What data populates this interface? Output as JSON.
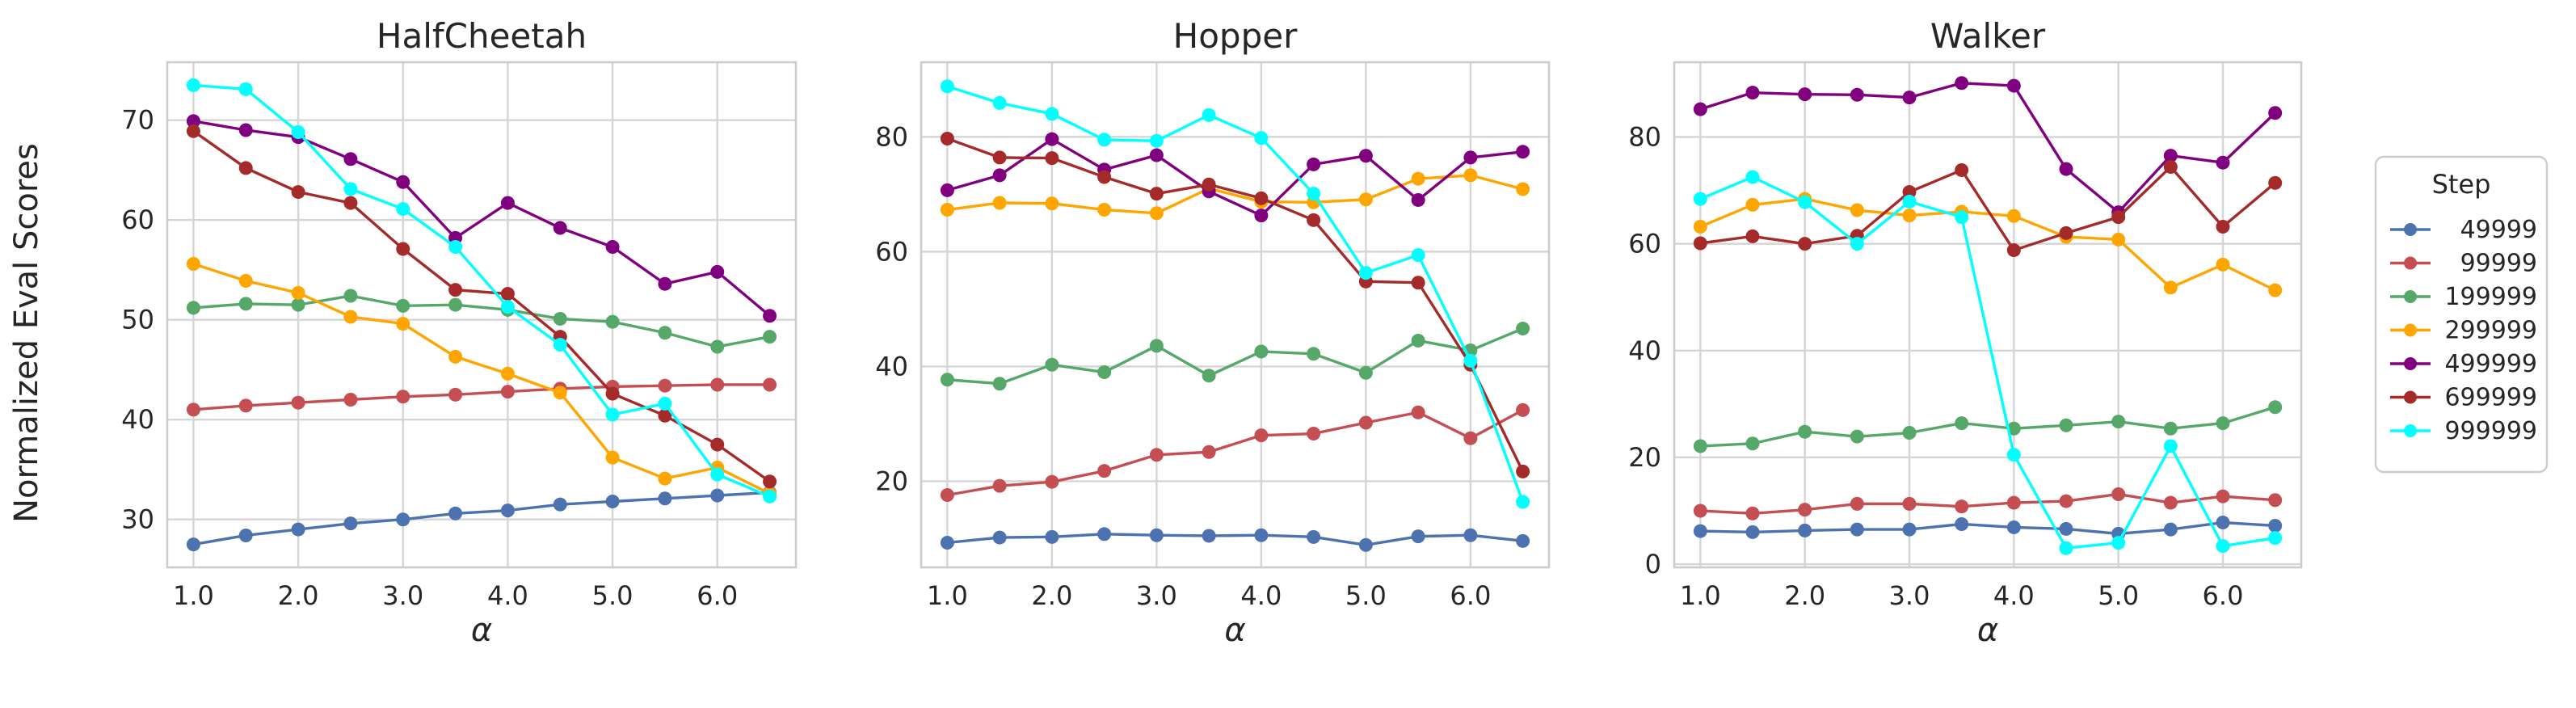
{
  "figure": {
    "ylabel": "Normalized Eval Scores"
  },
  "chart_data": [
    {
      "type": "line",
      "title": "HalfCheetah",
      "xlabel": "α",
      "ylabel": "Normalized Eval Scores",
      "x": [
        1.0,
        1.5,
        2.0,
        2.5,
        3.0,
        3.5,
        4.0,
        4.5,
        5.0,
        5.5,
        6.0,
        6.5
      ],
      "xticks": [
        1.0,
        2.0,
        3.0,
        4.0,
        5.0,
        6.0
      ],
      "xtick_labels": [
        "1.0",
        "2.0",
        "3.0",
        "4.0",
        "5.0",
        "6.0"
      ],
      "xlim": [
        0.75,
        6.75
      ],
      "ylim": [
        25.2,
        75.8
      ],
      "yticks": [
        30,
        40,
        50,
        60,
        70
      ],
      "grid": true,
      "series": [
        {
          "name": "49999",
          "values": [
            27.5,
            28.4,
            29.0,
            29.6,
            30.0,
            30.6,
            30.9,
            31.5,
            31.8,
            32.1,
            32.4,
            32.7
          ]
        },
        {
          "name": "99999",
          "values": [
            41.0,
            41.4,
            41.7,
            42.0,
            42.3,
            42.5,
            42.8,
            43.1,
            43.3,
            43.4,
            43.5,
            43.5
          ]
        },
        {
          "name": "199999",
          "values": [
            51.2,
            51.6,
            51.5,
            52.4,
            51.4,
            51.5,
            51.0,
            50.1,
            49.8,
            48.7,
            47.3,
            48.3
          ]
        },
        {
          "name": "299999",
          "values": [
            55.6,
            53.9,
            52.7,
            50.3,
            49.6,
            46.3,
            44.6,
            42.7,
            36.2,
            34.1,
            35.2,
            32.6
          ]
        },
        {
          "name": "499999",
          "values": [
            69.9,
            69.0,
            68.3,
            66.1,
            63.8,
            58.2,
            61.7,
            59.2,
            57.3,
            53.6,
            54.8,
            50.4
          ]
        },
        {
          "name": "699999",
          "values": [
            68.9,
            65.2,
            62.8,
            61.7,
            57.1,
            53.0,
            52.6,
            48.3,
            42.6,
            40.4,
            37.5,
            33.8
          ]
        },
        {
          "name": "999999",
          "values": [
            73.5,
            73.1,
            68.8,
            63.1,
            61.1,
            57.3,
            51.3,
            47.5,
            40.5,
            41.6,
            34.5,
            32.3
          ]
        }
      ]
    },
    {
      "type": "line",
      "title": "Hopper",
      "xlabel": "α",
      "ylabel": "",
      "x": [
        1.0,
        1.5,
        2.0,
        2.5,
        3.0,
        3.5,
        4.0,
        4.5,
        5.0,
        5.5,
        6.0,
        6.5
      ],
      "xticks": [
        1.0,
        2.0,
        3.0,
        4.0,
        5.0,
        6.0
      ],
      "xtick_labels": [
        "1.0",
        "2.0",
        "3.0",
        "4.0",
        "5.0",
        "6.0"
      ],
      "xlim": [
        0.75,
        6.75
      ],
      "ylim": [
        5.0,
        93.0
      ],
      "yticks": [
        20,
        40,
        60,
        80
      ],
      "grid": true,
      "series": [
        {
          "name": "49999",
          "values": [
            9.3,
            10.2,
            10.3,
            10.8,
            10.6,
            10.5,
            10.6,
            10.3,
            8.9,
            10.4,
            10.6,
            9.6
          ]
        },
        {
          "name": "99999",
          "values": [
            17.6,
            19.2,
            19.9,
            21.8,
            24.6,
            25.1,
            28.0,
            28.3,
            30.2,
            32.0,
            27.5,
            32.4
          ]
        },
        {
          "name": "199999",
          "values": [
            37.7,
            37.0,
            40.3,
            39.0,
            43.6,
            38.4,
            42.6,
            42.2,
            38.9,
            44.5,
            42.8,
            46.6
          ]
        },
        {
          "name": "299999",
          "values": [
            67.3,
            68.5,
            68.4,
            67.3,
            66.7,
            71.0,
            68.7,
            68.6,
            69.1,
            72.7,
            73.3,
            70.9
          ]
        },
        {
          "name": "499999",
          "values": [
            70.7,
            73.3,
            79.6,
            74.3,
            76.8,
            70.5,
            66.3,
            75.2,
            76.7,
            69.0,
            76.4,
            77.4
          ]
        },
        {
          "name": "699999",
          "values": [
            79.7,
            76.4,
            76.3,
            73.0,
            70.1,
            71.7,
            69.3,
            65.5,
            54.8,
            54.6,
            40.3,
            21.7
          ]
        },
        {
          "name": "999999",
          "values": [
            88.8,
            85.9,
            84.0,
            79.5,
            79.3,
            83.8,
            79.8,
            70.1,
            56.3,
            59.4,
            41.0,
            16.4
          ]
        }
      ]
    },
    {
      "type": "line",
      "title": "Walker",
      "xlabel": "α",
      "ylabel": "",
      "x": [
        1.0,
        1.5,
        2.0,
        2.5,
        3.0,
        3.5,
        4.0,
        4.5,
        5.0,
        5.5,
        6.0,
        6.5
      ],
      "xticks": [
        1.0,
        2.0,
        3.0,
        4.0,
        5.0,
        6.0
      ],
      "xtick_labels": [
        "1.0",
        "2.0",
        "3.0",
        "4.0",
        "5.0",
        "6.0"
      ],
      "xlim": [
        0.75,
        6.75
      ],
      "ylim": [
        -0.6,
        94.0
      ],
      "yticks": [
        0,
        20,
        40,
        60,
        80
      ],
      "grid": true,
      "series": [
        {
          "name": "49999",
          "values": [
            6.2,
            6.0,
            6.3,
            6.5,
            6.5,
            7.5,
            6.9,
            6.6,
            5.7,
            6.5,
            7.8,
            7.2
          ]
        },
        {
          "name": "99999",
          "values": [
            10.0,
            9.5,
            10.2,
            11.3,
            11.3,
            10.8,
            11.5,
            11.8,
            13.1,
            11.5,
            12.7,
            12.0
          ]
        },
        {
          "name": "199999",
          "values": [
            22.1,
            22.6,
            24.8,
            23.9,
            24.6,
            26.4,
            25.4,
            26.0,
            26.7,
            25.4,
            26.4,
            29.4
          ]
        },
        {
          "name": "299999",
          "values": [
            63.2,
            67.3,
            68.4,
            66.3,
            65.3,
            66.0,
            65.2,
            61.3,
            60.8,
            51.8,
            56.1,
            51.3
          ]
        },
        {
          "name": "499999",
          "values": [
            85.2,
            88.3,
            88.0,
            87.9,
            87.4,
            90.1,
            89.6,
            74.0,
            65.9,
            76.5,
            75.2,
            84.5
          ]
        },
        {
          "name": "699999",
          "values": [
            60.1,
            61.4,
            60.0,
            61.5,
            69.7,
            73.8,
            58.8,
            62.0,
            65.0,
            74.4,
            63.2,
            71.4
          ]
        },
        {
          "name": "999999",
          "values": [
            68.4,
            72.5,
            67.8,
            60.0,
            67.9,
            65.0,
            20.5,
            3.0,
            4.0,
            22.1,
            3.4,
            4.9
          ]
        }
      ]
    }
  ],
  "legend": {
    "title": "Step",
    "position": "right",
    "entries": [
      "49999",
      "99999",
      "199999",
      "299999",
      "499999",
      "699999",
      "999999"
    ]
  },
  "colors": {
    "49999": "#4c72b0",
    "99999": "#c44e52",
    "199999": "#55a868",
    "299999": "#ffa500",
    "499999": "#800080",
    "699999": "#a52a2a",
    "999999": "#00ffff",
    "grid": "#d5d5d5",
    "frame": "#cccccc"
  }
}
